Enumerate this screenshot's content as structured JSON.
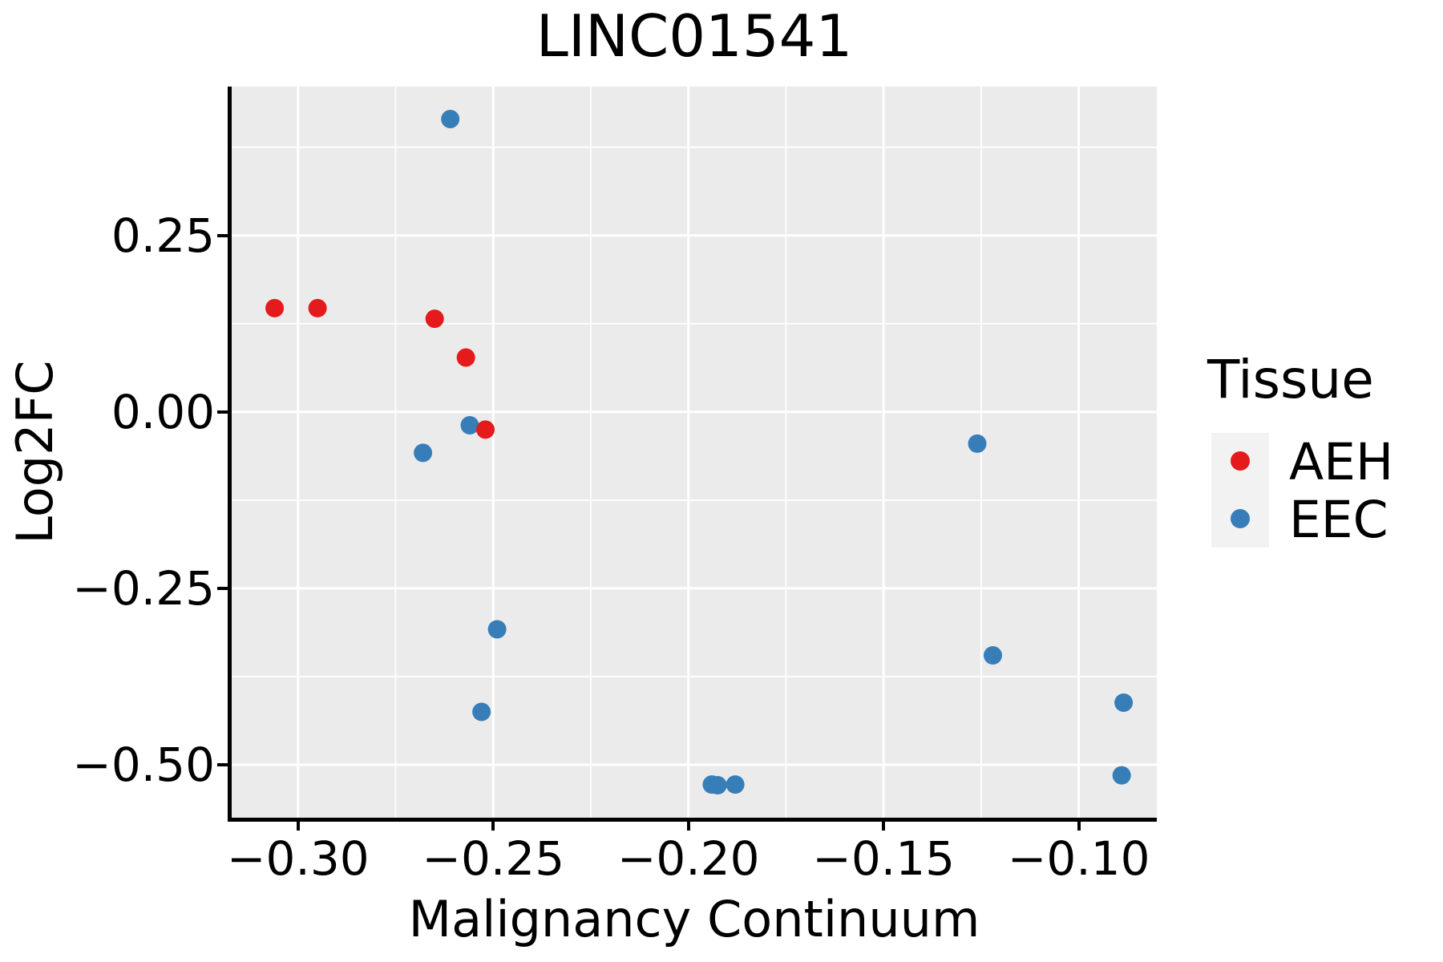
{
  "title": "LINC01541",
  "style": {
    "panel_bg": "#ebebeb",
    "grid_color": "#ffffff",
    "spine_color": "#000000",
    "text_color": "#000000",
    "legend_key_bg": "#f2f2f2",
    "aeh_color": "#e41a1c",
    "eec_color": "#377eb8"
  },
  "legend": {
    "title": "Tissue"
  },
  "chart_data": {
    "type": "scatter",
    "title": "LINC01541",
    "xlabel": "Malignancy Continuum",
    "ylabel": "Log2FC",
    "xlim": [
      -0.317,
      -0.08
    ],
    "ylim": [
      -0.575,
      0.461
    ],
    "x_ticks": [
      -0.3,
      -0.25,
      -0.2,
      -0.15,
      -0.1
    ],
    "x_tick_labels": [
      "−0.30",
      "−0.25",
      "−0.20",
      "−0.15",
      "−0.10"
    ],
    "y_ticks": [
      0.25,
      0.0,
      -0.25,
      -0.5
    ],
    "y_tick_labels": [
      "0.25",
      "0.00",
      "−0.25",
      "−0.50"
    ],
    "x_minor_ticks": [
      -0.275,
      -0.225,
      -0.175,
      -0.125
    ],
    "y_minor_ticks": [
      0.375,
      0.125,
      -0.125,
      -0.375
    ],
    "grid": true,
    "legend_position": "right",
    "legend_title": "Tissue",
    "point_radius_px": 11.5,
    "series": [
      {
        "name": "AEH",
        "color": "#e41a1c",
        "points": [
          [
            -0.306,
            0.147
          ],
          [
            -0.295,
            0.147
          ],
          [
            -0.265,
            0.132
          ],
          [
            -0.257,
            0.077
          ],
          [
            -0.252,
            -0.025
          ]
        ]
      },
      {
        "name": "EEC",
        "color": "#377eb8",
        "points": [
          [
            -0.261,
            0.415
          ],
          [
            -0.268,
            -0.058
          ],
          [
            -0.256,
            -0.019
          ],
          [
            -0.249,
            -0.308
          ],
          [
            -0.253,
            -0.425
          ],
          [
            -0.194,
            -0.528
          ],
          [
            -0.1925,
            -0.529
          ],
          [
            -0.188,
            -0.528
          ],
          [
            -0.126,
            -0.045
          ],
          [
            -0.122,
            -0.345
          ],
          [
            -0.0885,
            -0.412
          ],
          [
            -0.089,
            -0.515
          ]
        ]
      }
    ]
  }
}
